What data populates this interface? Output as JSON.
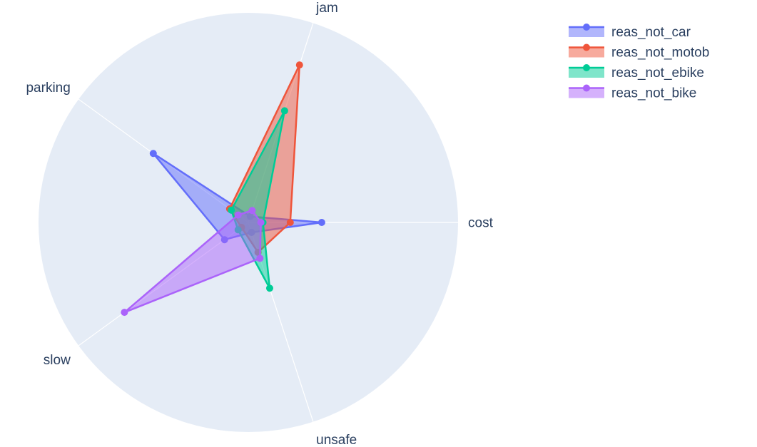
{
  "chart_data": {
    "type": "radar",
    "title": "",
    "axes": [
      "cost",
      "jam",
      "parking",
      "slow",
      "unsafe"
    ],
    "radial_range": [
      0,
      1
    ],
    "grid": true,
    "legend_placement": "top-right",
    "series": [
      {
        "name": "reas_not_car",
        "color": "#636efa",
        "values": [
          0.35,
          0.03,
          0.56,
          0.14,
          0.05
        ]
      },
      {
        "name": "reas_not_motob",
        "color": "#ef553b",
        "values": [
          0.2,
          0.79,
          0.11,
          0.04,
          0.15
        ]
      },
      {
        "name": "reas_not_ebike",
        "color": "#00cc96",
        "values": [
          0.07,
          0.56,
          0.1,
          0.06,
          0.33
        ]
      },
      {
        "name": "reas_not_bike",
        "color": "#ab63fa",
        "values": [
          0.06,
          0.06,
          0.06,
          0.73,
          0.18
        ]
      }
    ]
  }
}
